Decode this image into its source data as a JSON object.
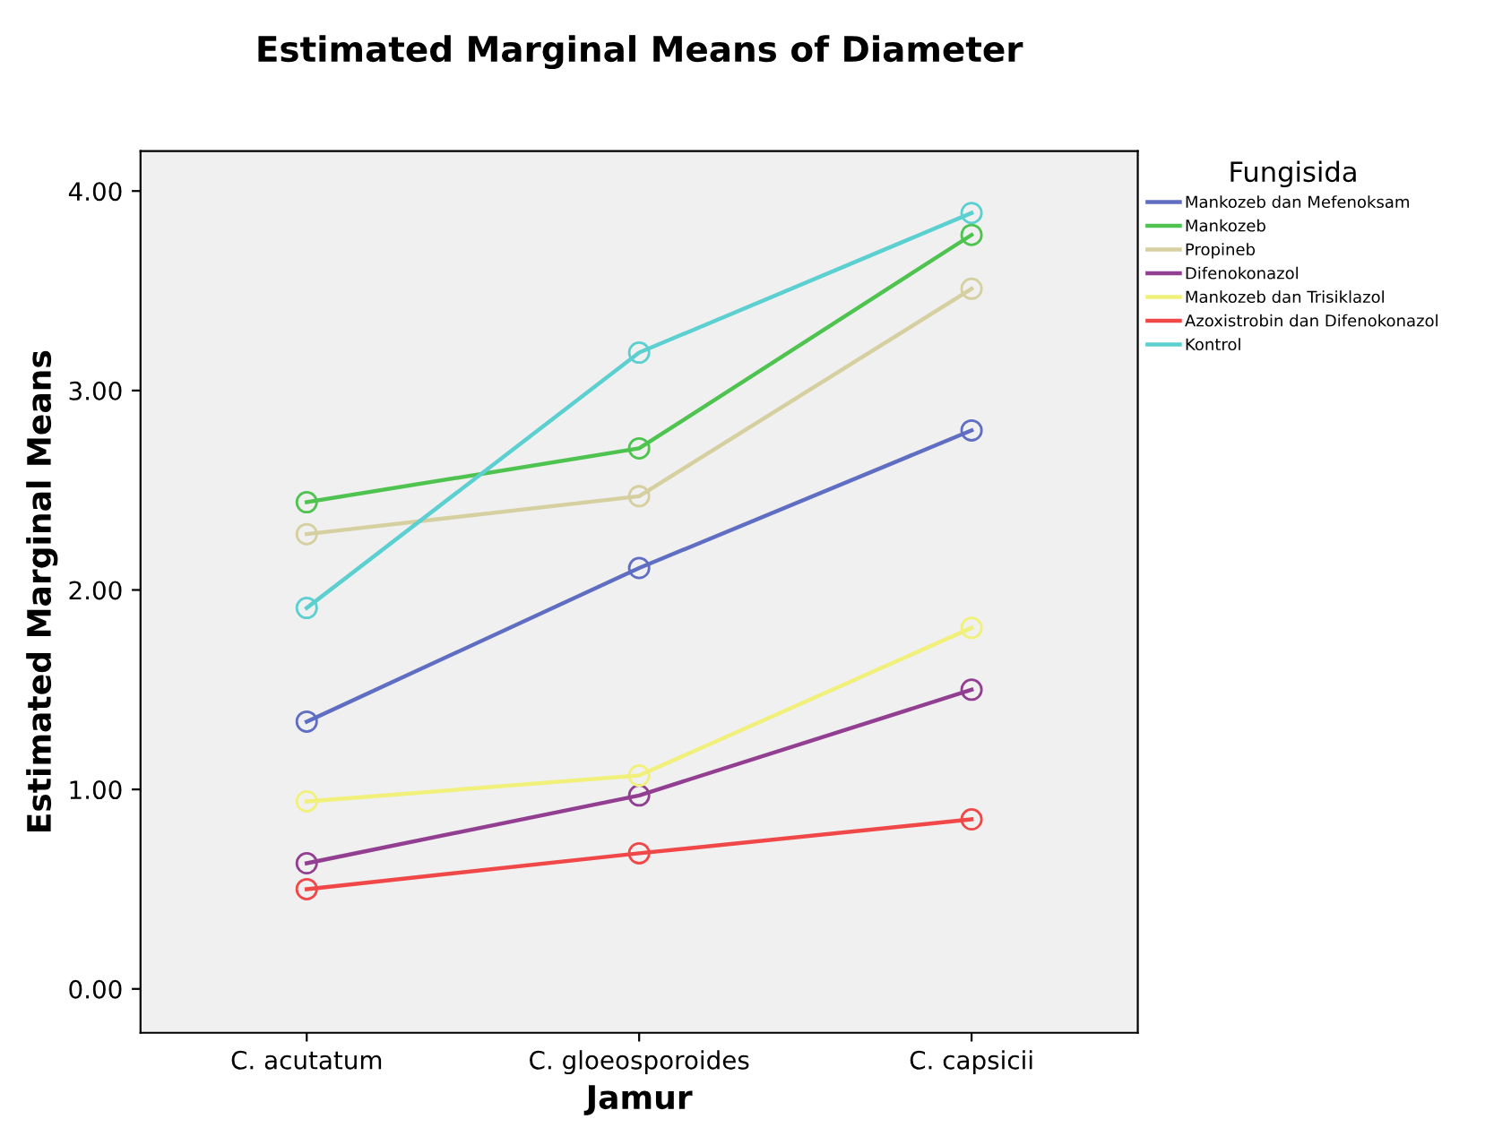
{
  "chart_data": {
    "type": "line",
    "title": "Estimated Marginal Means of Diameter",
    "xlabel": "Jamur",
    "ylabel": "Estimated Marginal Means",
    "legend_title": "Fungisida",
    "categories": [
      "C. acutatum",
      "C. gloeosporoides",
      "C. capsicii"
    ],
    "series": [
      {
        "name": "Mankozeb dan Mefenoksam",
        "color": "#5f6dc2",
        "values": [
          1.34,
          2.11,
          2.8
        ]
      },
      {
        "name": "Mankozeb",
        "color": "#4fc34f",
        "values": [
          2.44,
          2.71,
          3.78
        ]
      },
      {
        "name": "Propineb",
        "color": "#d6cfa0",
        "values": [
          2.28,
          2.47,
          3.51
        ]
      },
      {
        "name": "Difenokonazol",
        "color": "#923f92",
        "values": [
          0.63,
          0.97,
          1.5
        ]
      },
      {
        "name": "Mankozeb dan Trisiklazol",
        "color": "#f0f07a",
        "values": [
          0.94,
          1.07,
          1.81
        ]
      },
      {
        "name": "Azoxistrobin dan Difenokonazol",
        "color": "#f04848",
        "values": [
          0.5,
          0.68,
          0.85
        ]
      },
      {
        "name": "Kontrol",
        "color": "#5cd0d0",
        "values": [
          1.91,
          3.19,
          3.89
        ]
      }
    ],
    "ylim": [
      -0.22,
      4.2
    ],
    "yticks": [
      {
        "value": 0,
        "label": "0.00"
      },
      {
        "value": 1,
        "label": "1.00"
      },
      {
        "value": 2,
        "label": "2.00"
      },
      {
        "value": 3,
        "label": "3.00"
      },
      {
        "value": 4,
        "label": "4.00"
      }
    ],
    "grid": false,
    "legend": "right",
    "marker": "circle",
    "line_style": "solid"
  }
}
